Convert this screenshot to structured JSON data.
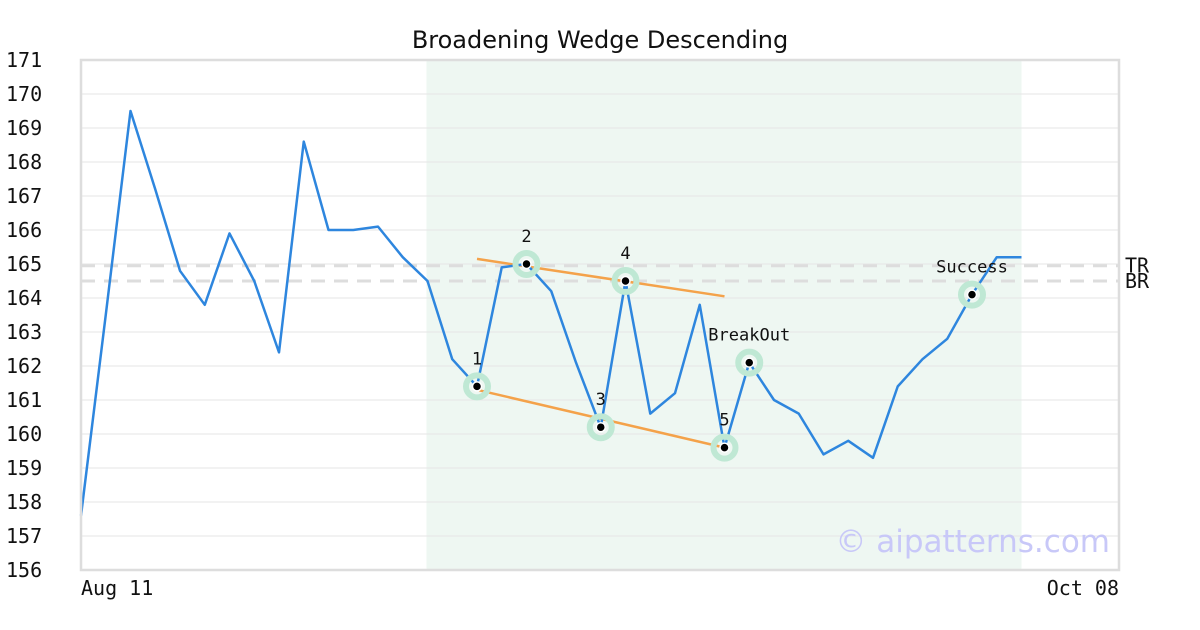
{
  "chart_data": {
    "type": "line",
    "title": "Broadening Wedge Descending",
    "xlabel": "",
    "ylabel": "",
    "ylim": [
      156,
      171
    ],
    "y_ticks": [
      "156",
      "157",
      "158",
      "159",
      "160",
      "161",
      "162",
      "163",
      "164",
      "165",
      "166",
      "167",
      "168",
      "169",
      "170",
      "171"
    ],
    "x_tick_labels": [
      "Aug 11",
      "Oct 08"
    ],
    "series": [
      {
        "color": "#2e86de",
        "values": [
          157.6,
          163.5,
          169.5,
          167.2,
          164.8,
          163.8,
          165.9,
          164.5,
          162.4,
          168.6,
          166.0,
          166.0,
          166.1,
          165.2,
          164.5,
          162.2,
          161.4,
          164.9,
          165.0,
          164.2,
          162.1,
          160.2,
          164.5,
          160.6,
          161.2,
          163.8,
          159.6,
          162.1,
          161.0,
          160.6,
          159.4,
          159.8,
          159.3,
          161.4,
          162.2,
          162.8,
          164.1,
          165.2,
          165.2
        ]
      }
    ],
    "highlight_range": {
      "start_index": 14,
      "end_index": 38,
      "color": "#eef7f2"
    },
    "reference_lines": [
      {
        "label": "TR",
        "value": 164.95,
        "color": "#dddddd"
      },
      {
        "label": "BR",
        "value": 164.5,
        "color": "#dddddd"
      }
    ],
    "trend_lines": [
      {
        "x1": 16,
        "y1": 165.15,
        "x2": 26,
        "y2": 164.05,
        "color": "#f4a24a"
      },
      {
        "x1": 16,
        "y1": 161.3,
        "x2": 26,
        "y2": 159.6,
        "color": "#f4a24a"
      }
    ],
    "points": [
      {
        "label": "1",
        "index": 16,
        "value": 161.4
      },
      {
        "label": "2",
        "index": 18,
        "value": 165.0
      },
      {
        "label": "3",
        "index": 21,
        "value": 160.2
      },
      {
        "label": "4",
        "index": 22,
        "value": 164.5
      },
      {
        "label": "5",
        "index": 26,
        "value": 159.6
      },
      {
        "label": "BreakOut",
        "index": 27,
        "value": 162.1
      },
      {
        "label": "Success",
        "index": 36,
        "value": 164.1
      }
    ],
    "grid": true,
    "watermark": "© aipatterns.com"
  }
}
